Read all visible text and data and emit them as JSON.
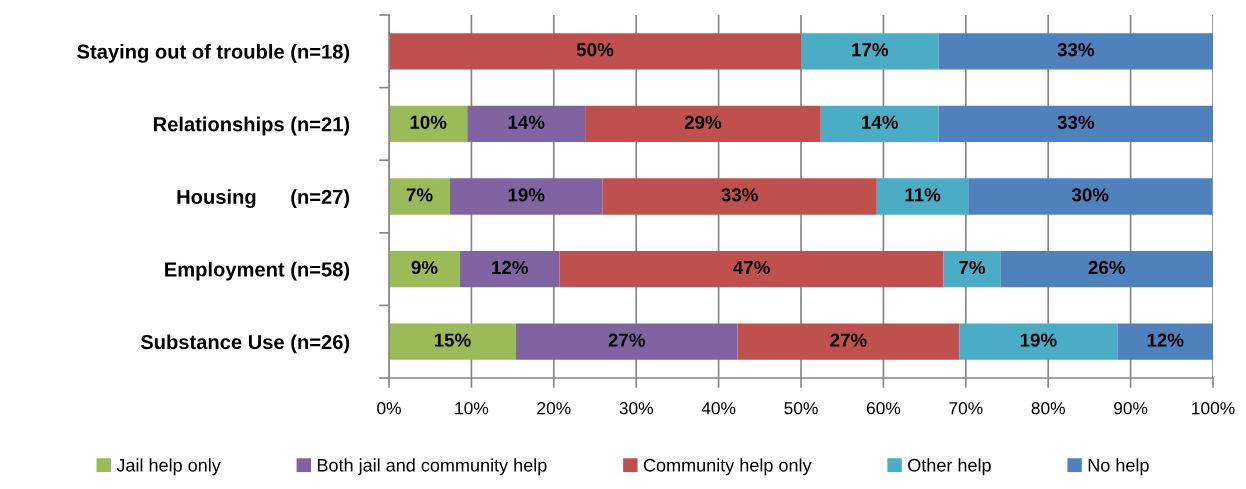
{
  "chart_data": {
    "type": "bar",
    "orientation": "horizontal",
    "stacked": true,
    "categories": [
      "Staying out of trouble (n=18)",
      "Relationships (n=21)",
      "Housing      (n=27)",
      "Employment (n=58)",
      "Substance Use (n=26)"
    ],
    "series": [
      {
        "name": "Jail help only",
        "color": "#9bbb59",
        "values": [
          null,
          9.5,
          7.4,
          8.6,
          15.4
        ],
        "value_labels": [
          null,
          "10%",
          "7%",
          "9%",
          "15%"
        ]
      },
      {
        "name": "Both jail and community help",
        "color": "#8064a2",
        "values": [
          null,
          14.3,
          18.5,
          12.1,
          26.9
        ],
        "value_labels": [
          null,
          "14%",
          "19%",
          "12%",
          "27%"
        ]
      },
      {
        "name": "Community help only",
        "color": "#c0504d",
        "values": [
          50.0,
          28.6,
          33.3,
          46.6,
          26.9
        ],
        "value_labels": [
          "50%",
          "29%",
          "33%",
          "47%",
          "27%"
        ]
      },
      {
        "name": "Other help",
        "color": "#4bacc6",
        "values": [
          16.7,
          14.3,
          11.1,
          6.9,
          19.2
        ],
        "value_labels": [
          "17%",
          "14%",
          "11%",
          "7%",
          "19%"
        ]
      },
      {
        "name": "No help",
        "color": "#4f81bd",
        "values": [
          33.3,
          33.3,
          29.6,
          25.8,
          11.6
        ],
        "value_labels": [
          "33%",
          "33%",
          "30%",
          "26%",
          "12%"
        ]
      }
    ],
    "xlim": [
      0,
      100
    ],
    "xticks": [
      {
        "value": 0,
        "label": "0%"
      },
      {
        "value": 10,
        "label": "10%"
      },
      {
        "value": 20,
        "label": "20%"
      },
      {
        "value": 30,
        "label": "30%"
      },
      {
        "value": 40,
        "label": "40%"
      },
      {
        "value": 50,
        "label": "50%"
      },
      {
        "value": 60,
        "label": "60%"
      },
      {
        "value": 70,
        "label": "70%"
      },
      {
        "value": 80,
        "label": "80%"
      },
      {
        "value": 90,
        "label": "90%"
      },
      {
        "value": 100,
        "label": "100%"
      }
    ],
    "grid": "x",
    "legend": "bottom"
  }
}
